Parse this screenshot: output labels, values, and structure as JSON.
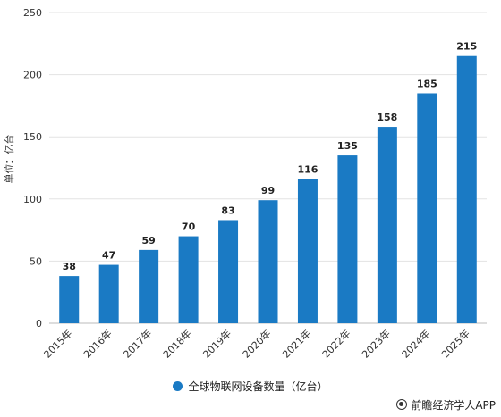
{
  "chart_data": {
    "type": "bar",
    "categories": [
      "2015年",
      "2016年",
      "2017年",
      "2018年",
      "2019年",
      "2020年",
      "2021年",
      "2022年",
      "2023年",
      "2024年",
      "2025年"
    ],
    "series": [
      {
        "name": "全球物联网设备数量（亿台）",
        "values": [
          38,
          47,
          59,
          70,
          83,
          99,
          116,
          135,
          158,
          185,
          215
        ]
      }
    ],
    "ylabel": "单位：亿台",
    "ylim": [
      0,
      250
    ],
    "yticks": [
      0,
      50,
      100,
      150,
      200,
      250
    ],
    "grid": true,
    "legend": "bottom-center",
    "bar_color": "#1a7ac4"
  },
  "legend_label": "全球物联网设备数量（亿台）",
  "source": "前瞻经济学人APP",
  "source_icon": "brand-logo-icon"
}
